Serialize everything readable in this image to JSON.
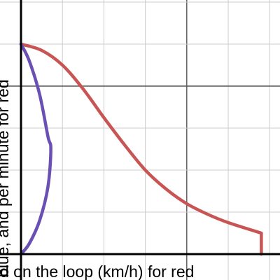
{
  "chart_data": {
    "type": "line",
    "xlabel": "d on the loop (km/h) for red",
    "ylabel": "blue, and per minute for red",
    "xlim": [
      -0.6,
      6.1
    ],
    "ylim": [
      -0.6,
      6.1
    ],
    "x_gridlines": [
      0,
      1,
      2,
      3,
      4,
      5,
      6
    ],
    "y_gridlines": [
      0,
      1,
      2,
      3,
      4,
      5,
      6
    ],
    "major_axis_x": 4,
    "major_axis_y": 4,
    "grid": true,
    "legend": "none",
    "colors": {
      "red": "#c85454",
      "blue": "#6a50b4",
      "grid": "#cccccc",
      "major": "#555555",
      "axis": "#000000"
    },
    "series": [
      {
        "color": "red",
        "x": [
          0,
          0.5,
          1,
          1.5,
          2,
          2.5,
          3,
          3.5,
          4,
          4.5,
          5,
          5.8,
          5.8
        ],
        "y": [
          5,
          4.85,
          4.5,
          3.93,
          3.25,
          2.6,
          2.0,
          1.55,
          1.2,
          0.95,
          0.75,
          0.5,
          0
        ]
      },
      {
        "color": "blue",
        "x": [
          0,
          0.2,
          0.45,
          0.65,
          0.72,
          0.65,
          0.45,
          0.2,
          0
        ],
        "y": [
          5,
          4.6,
          3.8,
          2.8,
          2.5,
          1.6,
          0.8,
          0.25,
          0
        ]
      }
    ]
  }
}
